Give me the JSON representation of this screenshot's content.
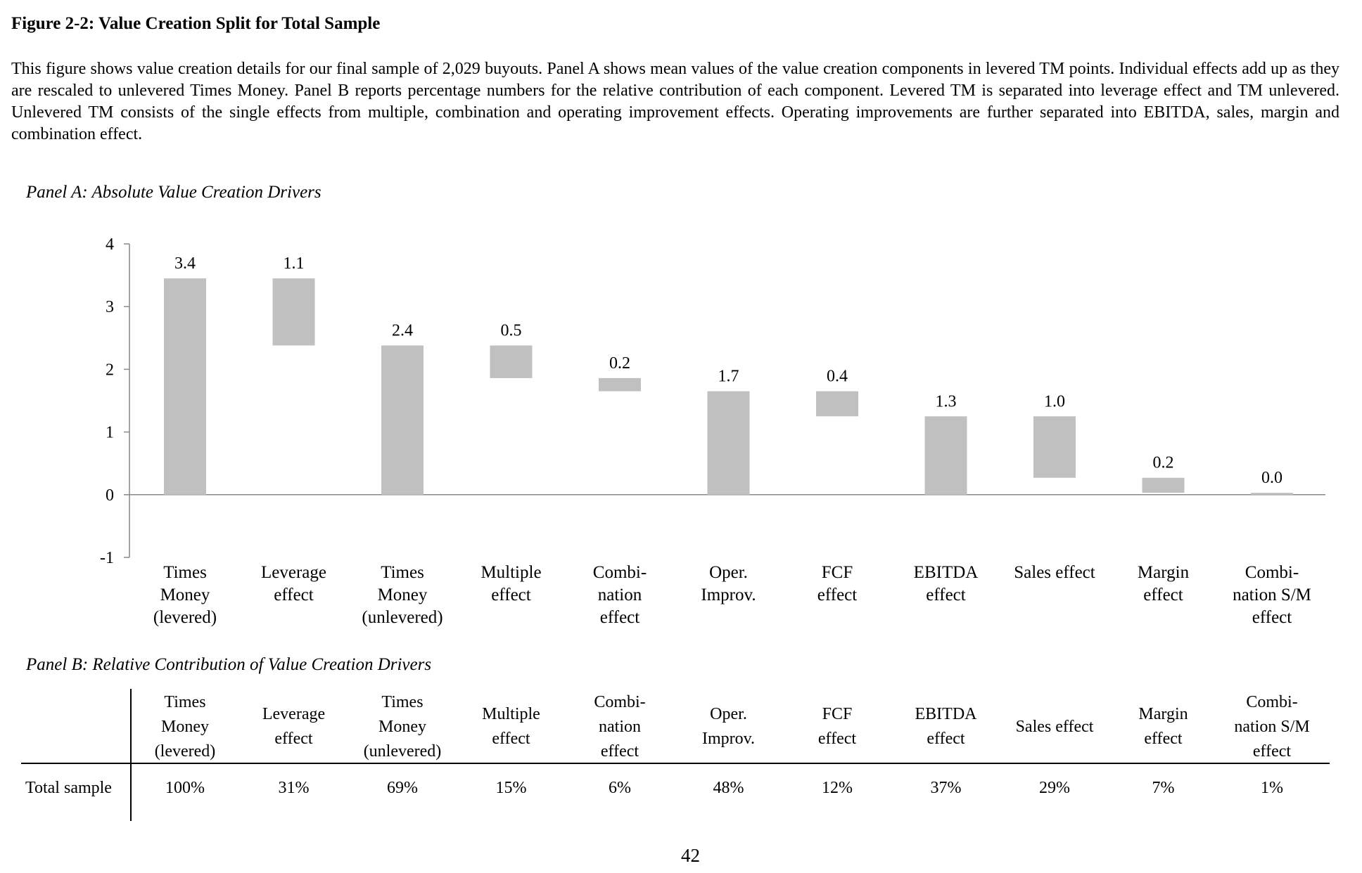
{
  "figure": {
    "title": "Figure 2-2: Value Creation Split for Total Sample",
    "caption": "This figure shows value creation details for our final sample of 2,029 buyouts. Panel A shows mean values of the value creation components in levered TM points. Individual effects add up as they are rescaled to unlevered Times Money. Panel B reports percentage numbers for the relative contribution of each component. Levered TM is separated into leverage effect and TM unlevered. Unlevered TM consists of the single effects from multiple, combination and operating improvement effects. Operating improvements are further separated into EBITDA, sales, margin and combination effect."
  },
  "panel_a": {
    "title": "Panel A: Absolute Value Creation Drivers"
  },
  "chart_data": {
    "type": "bar",
    "subtype": "waterfall",
    "categories": [
      [
        "Times",
        "Money",
        "(levered)"
      ],
      [
        "Leverage",
        "effect"
      ],
      [
        "Times",
        "Money",
        "(unlevered)"
      ],
      [
        "Multiple",
        "effect"
      ],
      [
        "Combi-",
        "nation",
        "effect"
      ],
      [
        "Oper.",
        "Improv."
      ],
      [
        "FCF",
        "effect"
      ],
      [
        "EBITDA",
        "effect"
      ],
      [
        "Sales effect"
      ],
      [
        "Margin",
        "effect"
      ],
      [
        "Combi-",
        "nation S/M",
        "effect"
      ]
    ],
    "bars": [
      {
        "low": 0.0,
        "high": 3.45,
        "label": "3.4"
      },
      {
        "low": 2.38,
        "high": 3.45,
        "label": "1.1"
      },
      {
        "low": 0.0,
        "high": 2.38,
        "label": "2.4"
      },
      {
        "low": 1.86,
        "high": 2.38,
        "label": "0.5"
      },
      {
        "low": 1.65,
        "high": 1.86,
        "label": "0.2"
      },
      {
        "low": 0.0,
        "high": 1.65,
        "label": "1.7"
      },
      {
        "low": 1.25,
        "high": 1.65,
        "label": "0.4"
      },
      {
        "low": 0.0,
        "high": 1.25,
        "label": "1.3"
      },
      {
        "low": 0.27,
        "high": 1.25,
        "label": "1.0"
      },
      {
        "low": 0.03,
        "high": 0.27,
        "label": "0.2"
      },
      {
        "low": 0.0,
        "high": 0.03,
        "label": "0.0"
      }
    ],
    "ylim": [
      -1,
      4
    ],
    "yticks": [
      "4",
      "3",
      "2",
      "1",
      "0",
      "-1"
    ],
    "bar_color": "#c0c0c0",
    "xlabel": "",
    "ylabel": ""
  },
  "panel_b": {
    "title": "Panel B: Relative Contribution of Value Creation Drivers",
    "headers": [
      [
        "Times",
        "Money",
        "(levered)"
      ],
      [
        "Leverage",
        "effect"
      ],
      [
        "Times",
        "Money",
        "(unlevered)"
      ],
      [
        "Multiple",
        "effect"
      ],
      [
        "Combi-",
        "nation",
        "effect"
      ],
      [
        "Oper.",
        "Improv."
      ],
      [
        "FCF",
        "effect"
      ],
      [
        "EBITDA",
        "effect"
      ],
      [
        "Sales effect"
      ],
      [
        "Margin",
        "effect"
      ],
      [
        "Combi-",
        "nation S/M",
        "effect"
      ]
    ],
    "row_label": "Total sample",
    "values": [
      "100%",
      "31%",
      "69%",
      "15%",
      "6%",
      "48%",
      "12%",
      "37%",
      "29%",
      "7%",
      "1%"
    ]
  },
  "page_number": "42"
}
